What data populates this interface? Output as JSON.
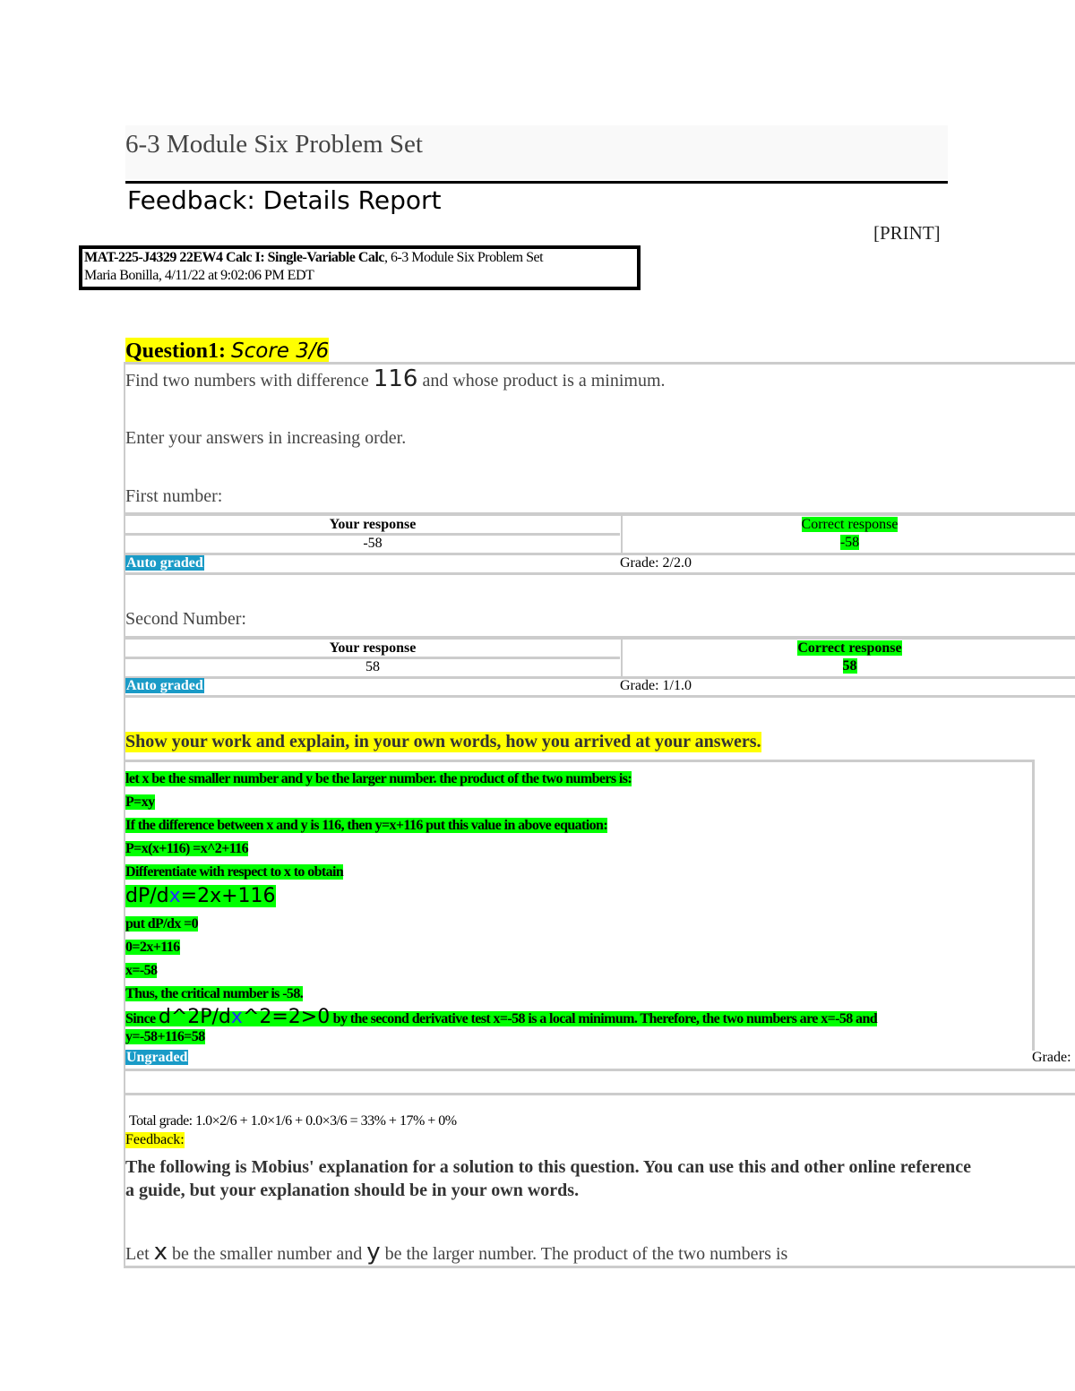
{
  "page_title": "6-3 Module Six Problem Set",
  "report_title": "Feedback: Details Report",
  "print_label": "[PRINT]",
  "info": {
    "course_bold": "MAT-225-J4329 22EW4 Calc I: Single-Variable Calc",
    "course_rest": ", 6-3 Module Six Problem Set",
    "student_line": "Maria Bonilla, 4/11/22 at 9:02:06 PM EDT"
  },
  "question": {
    "label": "Question1:",
    "score": "Score 3/6",
    "stem_pre": "Find two numbers with difference",
    "stem_num": "116",
    "stem_post": "and whose product is a minimum.",
    "instruction": "Enter your answers in increasing order.",
    "parts": [
      {
        "label": "First number:",
        "your_header": "Your response",
        "correct_header": "Correct response",
        "your_value": "-58",
        "correct_value": "-58",
        "graded": "Auto graded",
        "grade": "Grade: 2/2.0"
      },
      {
        "label": "Second Number:",
        "your_header": "Your response",
        "correct_header": "Correct response",
        "your_value": "58",
        "correct_value": "58",
        "graded": "Auto graded",
        "grade": "Grade: 1/1.0"
      }
    ],
    "work_prompt": "Show your work and explain, in your own words, how you arrived at your answers.",
    "work_lines": [
      "let x be the smaller number and y be the larger number. the product of the two numbers is:",
      "P=xy",
      "If the difference between x and y is 116, then y=x+116 put this value in above equation:",
      "P=x(x+116) =x^2+116",
      "Differentiate with respect to x to obtain"
    ],
    "deriv": {
      "a": "dP/d",
      "x": "x",
      "b": "=2x+116"
    },
    "work_lines2": [
      "put dP/dx =0",
      "0=2x+116",
      "x=-58",
      "Thus, the critical number is -58."
    ],
    "since": {
      "pre": "Since",
      "d1": "d^2P/d",
      "x": "x",
      "d2": "^2=2>0",
      "post": "by the second derivative test x=-58 is a local minimum. Therefore, the two numbers are x=-58 and",
      "last": "y=-58+116=58"
    },
    "ungraded": "Ungraded",
    "grade_right": "Grade:",
    "total_grade": "Total grade: 1.0×2/6 + 1.0×1/6 + 0.0×3/6 = 33% + 17% + 0%",
    "feedback_label": "Feedback:",
    "feedback_text1": "The following is Mobius' explanation for a solution to this question. You can use this and other online reference",
    "feedback_text2": "a guide, but your explanation should be in your own words.",
    "explain": {
      "a": "Let",
      "x": "x",
      "b": "be the smaller number and",
      "y": "y",
      "c": "be the larger number. The product of the two numbers is"
    }
  },
  "colors": {
    "highlight_yellow": "#ffff00",
    "highlight_green": "#00ff00",
    "badge_blue": "#1a9bc7"
  }
}
